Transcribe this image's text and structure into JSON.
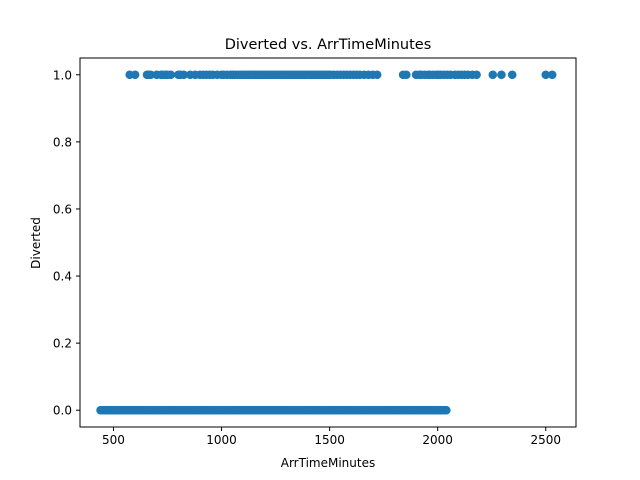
{
  "chart_data": {
    "type": "scatter",
    "title": "Diverted vs. ArrTimeMinutes",
    "xlabel": "ArrTimeMinutes",
    "ylabel": "Diverted",
    "xlim": [
      345,
      2640
    ],
    "ylim": [
      -0.05,
      1.05
    ],
    "xticks": [
      500,
      1000,
      1500,
      2000,
      2500
    ],
    "yticks": [
      0.0,
      0.2,
      0.4,
      0.6,
      0.8,
      1.0
    ],
    "xtick_labels": [
      "500",
      "1000",
      "1500",
      "2000",
      "2500"
    ],
    "ytick_labels": [
      "0.0",
      "0.2",
      "0.4",
      "0.6",
      "0.8",
      "1.0"
    ],
    "grid": false,
    "legend": false,
    "marker_color": "#1f77b4",
    "series": [
      {
        "y": 1,
        "x": [
          575,
          600,
          655,
          662,
          672,
          700,
          720,
          727,
          740,
          750,
          765,
          800,
          810,
          825,
          855,
          878,
          900,
          915,
          930,
          945,
          960,
          980,
          1000,
          1010,
          1025,
          1040,
          1050,
          1060,
          1072,
          1085,
          1095,
          1105,
          1115,
          1125,
          1135,
          1145,
          1155,
          1165,
          1175,
          1185,
          1195,
          1205,
          1215,
          1225,
          1235,
          1245,
          1255,
          1265,
          1275,
          1285,
          1295,
          1305,
          1315,
          1325,
          1335,
          1345,
          1355,
          1365,
          1375,
          1385,
          1395,
          1405,
          1415,
          1425,
          1435,
          1445,
          1455,
          1465,
          1475,
          1485,
          1495,
          1505,
          1520,
          1535,
          1550,
          1565,
          1580,
          1595,
          1610,
          1625,
          1640,
          1660,
          1680,
          1700,
          1720,
          1840,
          1855,
          1900,
          1915,
          1925,
          1940,
          1955,
          1965,
          1980,
          1995,
          2005,
          2015,
          2030,
          2045,
          2060,
          2080,
          2095,
          2110,
          2125,
          2140,
          2160,
          2180,
          2255,
          2295,
          2345,
          2500,
          2530
        ]
      },
      {
        "y": 0,
        "x_range": [
          440,
          2040
        ],
        "step": 9
      }
    ]
  }
}
